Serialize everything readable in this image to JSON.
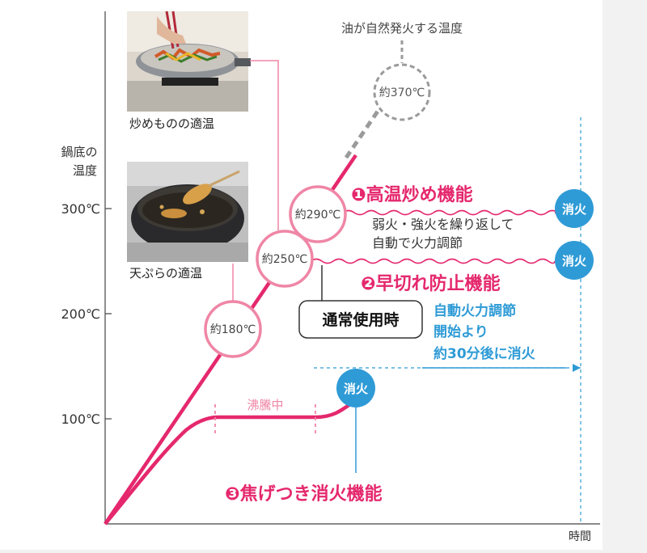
{
  "chart_data": {
    "type": "line",
    "xlabel": "時間",
    "ylabel": "鍋底の 温度",
    "ylabel_lines": [
      "鍋底の",
      "温度"
    ],
    "y_ticks": [
      {
        "value": 100,
        "label": "100℃"
      },
      {
        "value": 200,
        "label": "200℃"
      },
      {
        "value": 300,
        "label": "300℃"
      }
    ],
    "ylim": [
      0,
      390
    ],
    "grid": false,
    "series": [
      {
        "values_desc": "temperature rise line (magenta)",
        "points": [
          [
            0,
            0
          ],
          [
            10,
            100
          ],
          [
            30,
            300
          ]
        ]
      }
    ],
    "markers": [
      {
        "value": 180,
        "label": "約180℃",
        "note": "天ぷらの適温"
      },
      {
        "value": 250,
        "label": "約250℃",
        "note": "早切れ防止機能"
      },
      {
        "value": 290,
        "label": "約290℃",
        "note": "高温炒め機能"
      },
      {
        "value": 370,
        "label": "約370℃",
        "note": "油が自然発火する温度"
      }
    ],
    "annotations": {
      "ignition": "油が自然発火する温度",
      "stirfry_photo": "炒めものの適温",
      "tempura_photo": "天ぷらの適温",
      "feature1": "❶高温炒め機能",
      "feature1_desc_lines": [
        "弱火・強火を繰り返して",
        "自動で火力調節"
      ],
      "feature2": "❷早切れ防止機能",
      "feature3": "❸焦げつき消火機能",
      "normal": "通常使用時",
      "auto_lines": [
        "自動火力調節",
        "開始より",
        "約30分後に消火"
      ],
      "boiling": "沸騰中",
      "off": "消火"
    }
  },
  "colors": {
    "magenta": "#e5286d",
    "pink_line": "#ef86a6",
    "blue": "#2f9bd6",
    "gray": "#9a9a9a",
    "axis": "#444444"
  },
  "icons": [
    "stir-fry-pan-photo",
    "tempura-pot-photo"
  ]
}
